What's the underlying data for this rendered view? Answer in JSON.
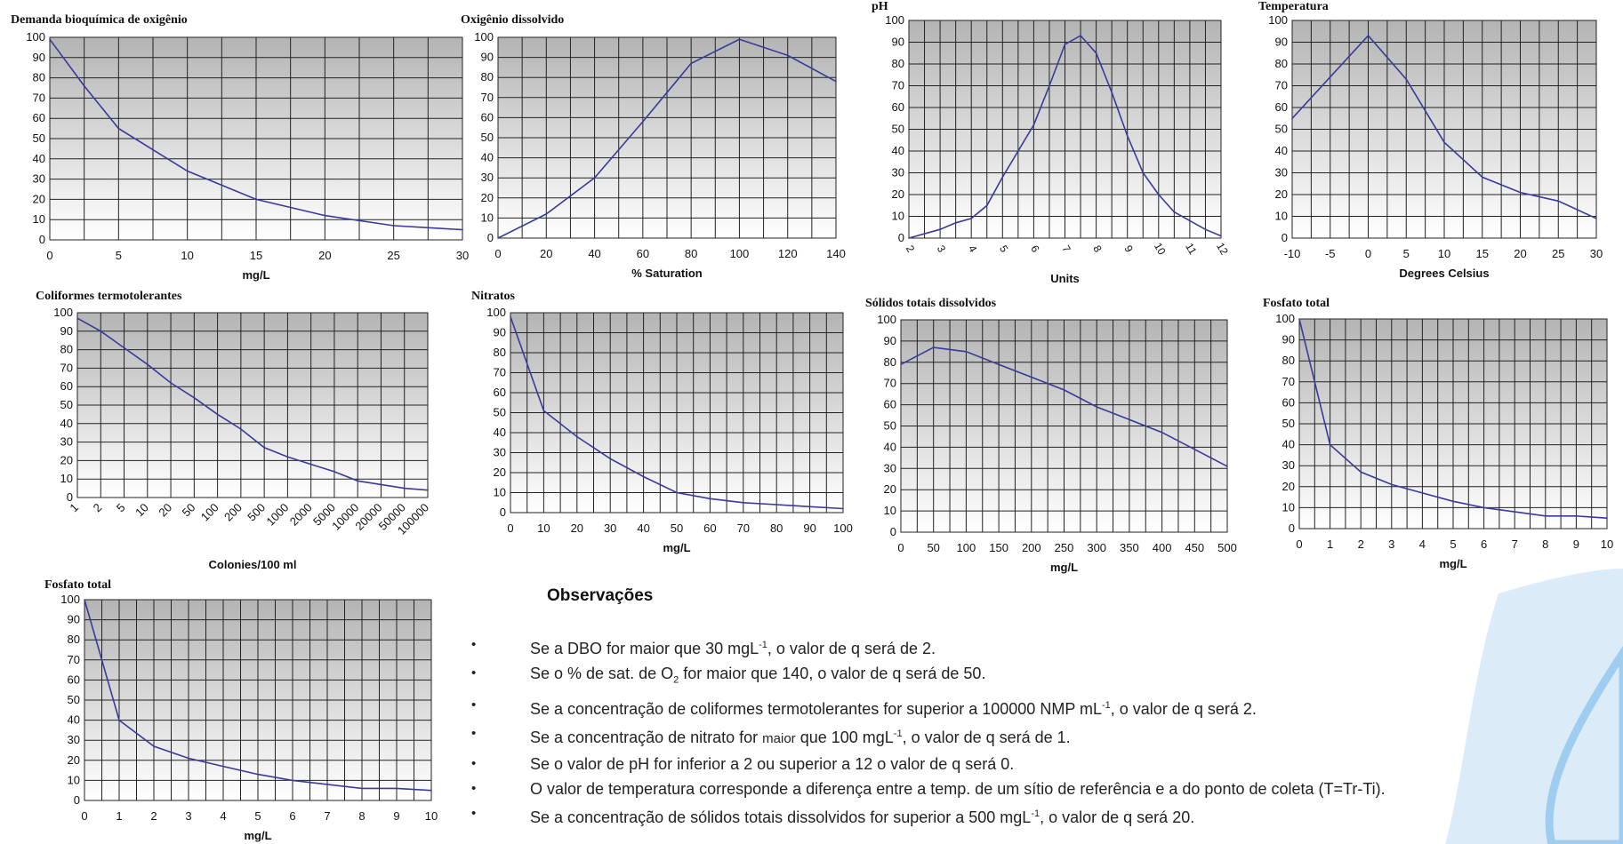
{
  "chart_data": [
    {
      "id": "dbo",
      "type": "line",
      "title": "Demanda bioquímica de oxigênio",
      "xlabel": "mg/L",
      "x": [
        0,
        2.5,
        5,
        10,
        15,
        20,
        25,
        30
      ],
      "y": [
        99,
        76,
        55,
        34,
        20,
        12,
        7,
        5
      ],
      "xlim": [
        0,
        30
      ],
      "xticks": [
        "0",
        "5",
        "10",
        "15",
        "20",
        "25",
        "30"
      ],
      "ylim": [
        0,
        100
      ],
      "yticks": [
        "0",
        "10",
        "20",
        "30",
        "40",
        "50",
        "60",
        "70",
        "80",
        "90",
        "100"
      ],
      "grid": true
    },
    {
      "id": "od",
      "type": "line",
      "title": "Oxigênio dissolvido",
      "xlabel": "% Saturation",
      "x": [
        0,
        20,
        40,
        60,
        80,
        100,
        120,
        140
      ],
      "y": [
        0,
        12,
        30,
        58,
        87,
        99,
        91,
        78
      ],
      "xlim": [
        0,
        140
      ],
      "xticks": [
        "0",
        "20",
        "40",
        "60",
        "80",
        "100",
        "120",
        "140"
      ],
      "ylim": [
        0,
        100
      ],
      "yticks": [
        "0",
        "10",
        "20",
        "30",
        "40",
        "50",
        "60",
        "70",
        "80",
        "90",
        "100"
      ],
      "grid": true
    },
    {
      "id": "ph",
      "type": "line",
      "title": "pH",
      "xlabel": "Units",
      "x": [
        2,
        3,
        3.5,
        4,
        4.5,
        5,
        6,
        6.5,
        7,
        7.5,
        8,
        8.5,
        9,
        9.5,
        10,
        10.5,
        11,
        11.5,
        12
      ],
      "y": [
        0,
        4,
        7,
        9,
        15,
        28,
        52,
        70,
        89,
        93,
        85,
        67,
        47,
        30,
        20,
        12,
        8,
        4,
        1
      ],
      "xlim": [
        2,
        12
      ],
      "xticks": [
        "2",
        "3",
        "4",
        "5",
        "6",
        "7",
        "8",
        "9",
        "10",
        "11",
        "12"
      ],
      "ylim": [
        0,
        100
      ],
      "yticks": [
        "0",
        "10",
        "20",
        "30",
        "40",
        "50",
        "60",
        "70",
        "80",
        "90",
        "100"
      ],
      "grid": true
    },
    {
      "id": "temp",
      "type": "line",
      "title": "Temperatura",
      "xlabel": "Degrees Celsius",
      "x": [
        -10,
        0,
        5,
        10,
        15,
        20,
        25,
        30
      ],
      "y": [
        55,
        93,
        73,
        44,
        28,
        21,
        17,
        9
      ],
      "xlim": [
        -10,
        30
      ],
      "xticks": [
        "-10",
        "-5",
        "0",
        "5",
        "10",
        "15",
        "20",
        "25",
        "30"
      ],
      "ylim": [
        0,
        100
      ],
      "yticks": [
        "0",
        "10",
        "20",
        "30",
        "40",
        "50",
        "60",
        "70",
        "80",
        "90",
        "100"
      ],
      "grid": true
    },
    {
      "id": "coli",
      "type": "line",
      "title": "Coliformes termotolerantes",
      "xlabel": "Colonies/100 ml",
      "x": [
        0,
        1,
        2,
        3,
        4,
        5,
        6,
        7,
        8,
        9,
        10,
        11,
        12,
        13,
        14,
        15
      ],
      "y": [
        97,
        90,
        81,
        72,
        62,
        54,
        45,
        37,
        27,
        22,
        18,
        14,
        9,
        7,
        5,
        4
      ],
      "xlim": [
        0,
        15
      ],
      "xticks": [
        "1",
        "2",
        "5",
        "10",
        "20",
        "50",
        "100",
        "200",
        "500",
        "1000",
        "2000",
        "5000",
        "10000",
        "20000",
        "50000",
        "100000"
      ],
      "ylim": [
        0,
        100
      ],
      "yticks": [
        "0",
        "10",
        "20",
        "30",
        "40",
        "50",
        "60",
        "70",
        "80",
        "90",
        "100"
      ],
      "grid": true
    },
    {
      "id": "nitrato",
      "type": "line",
      "title": "Nitratos",
      "xlabel": "mg/L",
      "x": [
        0,
        10,
        20,
        30,
        40,
        50,
        60,
        70,
        80,
        90,
        100
      ],
      "y": [
        98,
        51,
        38,
        27,
        18,
        10,
        7,
        5,
        4,
        3,
        2
      ],
      "xlim": [
        0,
        100
      ],
      "xticks": [
        "0",
        "10",
        "20",
        "30",
        "40",
        "50",
        "60",
        "70",
        "80",
        "90",
        "100"
      ],
      "ylim": [
        0,
        100
      ],
      "yticks": [
        "0",
        "10",
        "20",
        "30",
        "40",
        "50",
        "60",
        "70",
        "80",
        "90",
        "100"
      ],
      "grid": true
    },
    {
      "id": "solidos",
      "type": "line",
      "title": "Sólidos totais dissolvidos",
      "xlabel": "mg/L",
      "x": [
        0,
        50,
        100,
        150,
        200,
        250,
        300,
        350,
        400,
        450,
        500
      ],
      "y": [
        79,
        87,
        85,
        79,
        73,
        67,
        59,
        53,
        47,
        39,
        31
      ],
      "xlim": [
        0,
        500
      ],
      "xticks": [
        "0",
        "50",
        "100",
        "150",
        "200",
        "250",
        "300",
        "350",
        "400",
        "450",
        "500"
      ],
      "ylim": [
        0,
        100
      ],
      "yticks": [
        "0",
        "10",
        "20",
        "30",
        "40",
        "50",
        "60",
        "70",
        "80",
        "90",
        "100"
      ],
      "grid": true
    },
    {
      "id": "fosfato1",
      "type": "line",
      "title": "Fosfato total",
      "xlabel": "mg/L",
      "x": [
        0,
        1,
        2,
        3,
        4,
        5,
        6,
        7,
        8,
        9,
        10
      ],
      "y": [
        100,
        40,
        27,
        21,
        17,
        13,
        10,
        8,
        6,
        6,
        5
      ],
      "xlim": [
        0,
        10
      ],
      "xticks": [
        "0",
        "1",
        "2",
        "3",
        "4",
        "5",
        "6",
        "7",
        "8",
        "9",
        "10"
      ],
      "ylim": [
        0,
        100
      ],
      "yticks": [
        "0",
        "10",
        "20",
        "30",
        "40",
        "50",
        "60",
        "70",
        "80",
        "90",
        "100"
      ],
      "grid": true
    },
    {
      "id": "fosfato2",
      "type": "line",
      "title": "Fosfato total",
      "xlabel": "mg/L",
      "x": [
        0,
        1,
        2,
        3,
        4,
        5,
        6,
        7,
        8,
        9,
        10
      ],
      "y": [
        100,
        40,
        27,
        21,
        17,
        13,
        10,
        8,
        6,
        6,
        5
      ],
      "xlim": [
        0,
        10
      ],
      "xticks": [
        "0",
        "1",
        "2",
        "3",
        "4",
        "5",
        "6",
        "7",
        "8",
        "9",
        "10"
      ],
      "ylim": [
        0,
        100
      ],
      "yticks": [
        "0",
        "10",
        "20",
        "30",
        "40",
        "50",
        "60",
        "70",
        "80",
        "90",
        "100"
      ],
      "grid": true
    }
  ],
  "observacoes": {
    "title": "Observações",
    "bullet": "•",
    "items": [
      {
        "pre": "Se a DBO for maior que 30 mgL",
        "sup": "-1",
        "post": ", o valor de q será de 2."
      },
      {
        "pre": "Se o % de sat. de O",
        "sub": "2",
        "post": " for maior que 140, o valor de q será de 50."
      },
      {
        "pre": "Se a concentração de coliformes termotolerantes for superior a 100000 NMP mL",
        "sup": "-1",
        "post": ", o valor de q será 2."
      },
      {
        "pre": "Se a concentração de nitrato for ",
        "small": "maior",
        "mid": " que 100 mgL",
        "sup": "-1",
        "post": ", o valor de q será de 1."
      },
      {
        "pre": "Se o valor de pH for inferior a 2 ou superior a 12 o valor de q será 0."
      },
      {
        "pre": "O valor de temperatura corresponde a diferença entre a temp. de um sítio de referência e a do ponto de coleta (T=Tr-Ti)."
      },
      {
        "pre": "Se a concentração de sólidos totais dissolvidos for superior a 500 mgL",
        "sup": "-1",
        "post": ", o valor de q será 20."
      }
    ]
  },
  "colors": {
    "plot_top": "#b4b4b4",
    "plot_bottom": "#ffffff",
    "grid": "#222222",
    "line": "#3a3a9a",
    "header": "#1a2f8a",
    "deco_light": "#dcebf8",
    "deco_mid": "#9fcdf0"
  }
}
